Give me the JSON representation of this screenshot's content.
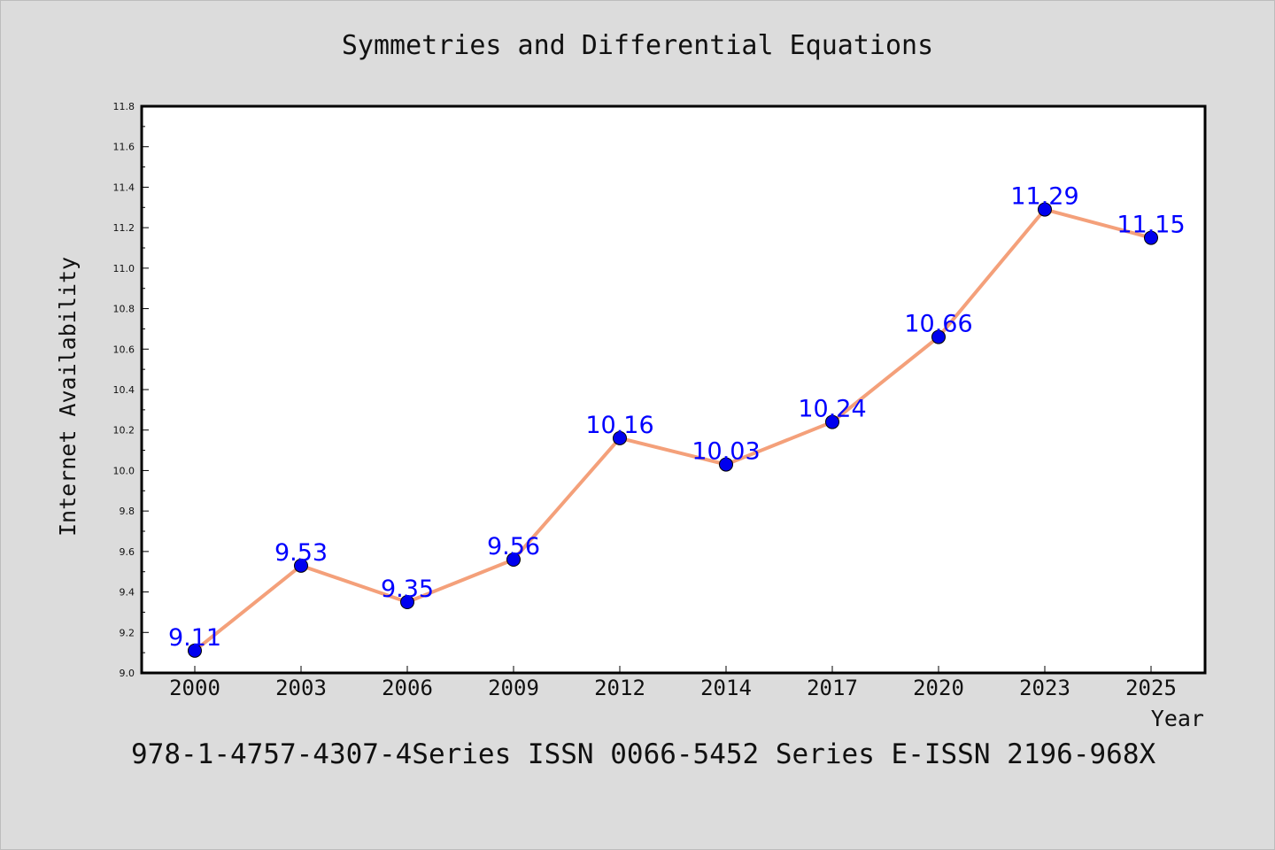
{
  "title": "Symmetries and Differential Equations",
  "footer": "978-1-4757-4307-4Series ISSN 0066-5452 Series E-ISSN 2196-968X",
  "chart_data": {
    "type": "line",
    "title": "Symmetries and Differential Equations",
    "xlabel": "Year",
    "ylabel": "Internet Availability",
    "categories": [
      "2000",
      "2003",
      "2006",
      "2009",
      "2012",
      "2014",
      "2017",
      "2020",
      "2023",
      "2025"
    ],
    "series": [
      {
        "values": [
          9.11,
          9.53,
          9.35,
          9.56,
          10.16,
          10.03,
          10.24,
          10.66,
          11.29,
          11.15
        ]
      }
    ],
    "data_labels": [
      "9.11",
      "9.53",
      "9.35",
      "9.56",
      "10.16",
      "10.03",
      "10.24",
      "10.66",
      "11.29",
      "11.15"
    ],
    "ylim": [
      9.0,
      11.8
    ],
    "yticks": [
      "9.0",
      "9.2",
      "9.4",
      "9.6",
      "9.8",
      "10.0",
      "10.2",
      "10.4",
      "10.6",
      "10.8",
      "11.0",
      "11.2",
      "11.4",
      "11.6",
      "11.8"
    ],
    "grid": false,
    "legend": "none",
    "colors": {
      "line": "#f4a07a",
      "marker": "#0000ee",
      "label": "#0000ff",
      "background": "#dcdcdc",
      "plot_background": "#ffffff"
    }
  }
}
